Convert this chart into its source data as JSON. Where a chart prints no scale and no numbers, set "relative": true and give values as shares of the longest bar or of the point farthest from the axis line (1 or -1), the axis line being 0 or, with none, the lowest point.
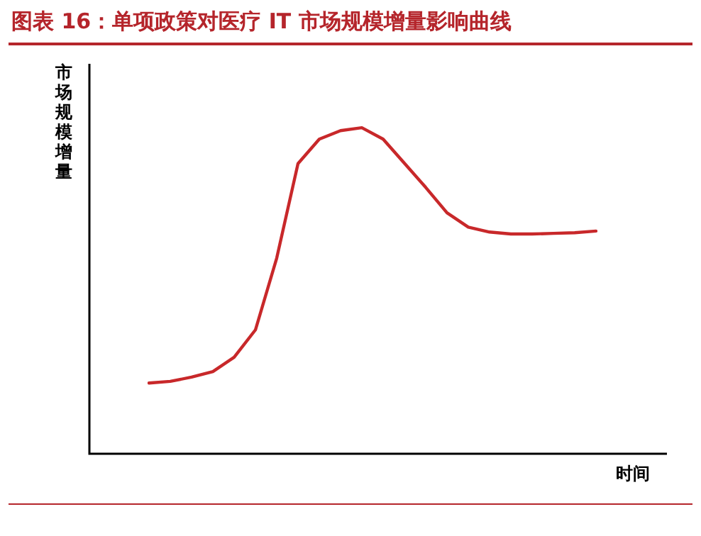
{
  "chart_data": {
    "type": "line",
    "title": "图表 16：单项政策对医疗 IT 市场规模增量影响曲线",
    "ylabel": "市场规模增量",
    "xlabel": "时间",
    "relative": true,
    "legend": false,
    "marker": "none",
    "line_style": "solid",
    "categories": [
      null,
      null,
      null,
      null,
      null,
      null,
      null,
      null,
      null,
      null,
      null,
      null,
      null,
      null,
      null,
      null,
      null,
      null,
      null,
      null,
      null,
      null
    ],
    "series": [
      {
        "color": "#c8282a",
        "values": [
          0.217,
          0.222,
          0.235,
          0.252,
          0.296,
          0.38,
          0.6,
          0.89,
          0.965,
          0.991,
          1,
          0.965,
          0.891,
          0.817,
          0.739,
          0.695,
          0.68,
          0.674,
          0.674,
          0.676,
          0.678,
          0.683
        ]
      }
    ]
  }
}
